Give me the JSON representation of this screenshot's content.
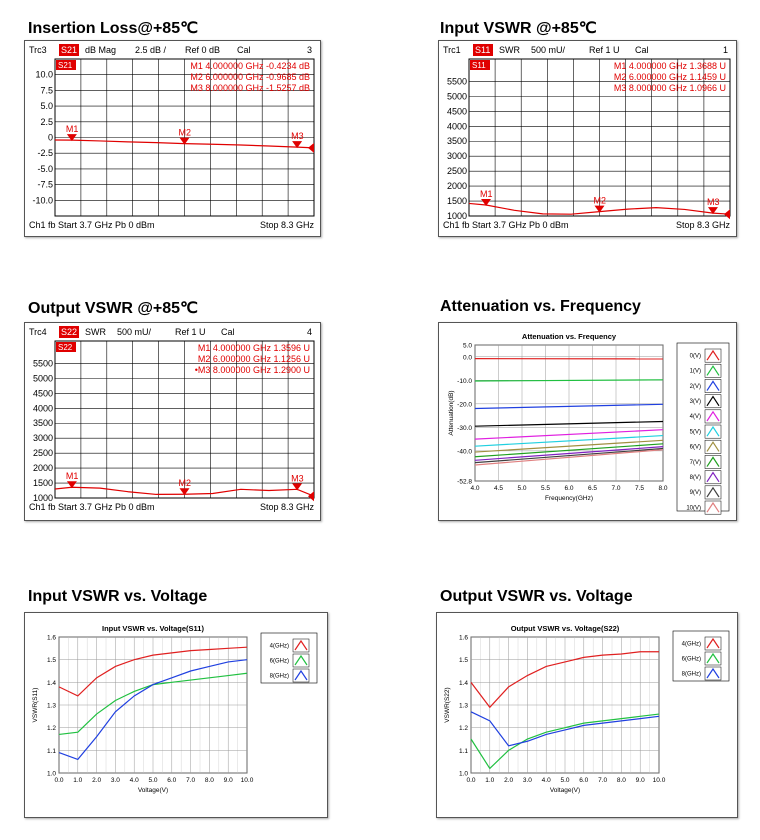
{
  "titles": {
    "t1": "Insertion Loss@+85℃",
    "t2": "Input VSWR @+85℃",
    "t3": "Output VSWR @+85℃",
    "t4": "Attenuation vs. Frequency",
    "t5": "Input VSWR vs. Voltage",
    "t6": "Output VSWR vs. Voltage"
  },
  "chart_data": [
    {
      "type": "line",
      "header": {
        "trc": "Trc3",
        "param": "S21",
        "format": "dB Mag",
        "scale": "2.5 dB /",
        "ref": "Ref 0 dB",
        "cal": "Cal",
        "num": "3"
      },
      "trace_tag": "S21",
      "ylim": [
        -12.5,
        12.5
      ],
      "yticks": [
        10,
        7.5,
        5,
        2.5,
        0,
        -2.5,
        -5,
        -7.5,
        -10
      ],
      "ytick_labels": [
        "10.0",
        "7.5",
        "5.0",
        "2.5",
        "0",
        "-2.5",
        "-5.0",
        "-7.5",
        "-10.0"
      ],
      "xlim": [
        3.7,
        8.3
      ],
      "x": [
        3.7,
        4.0,
        4.5,
        5.0,
        5.5,
        6.0,
        6.5,
        7.0,
        7.5,
        8.0,
        8.3
      ],
      "y": [
        -0.4,
        -0.42,
        -0.55,
        -0.7,
        -0.82,
        -0.97,
        -1.08,
        -1.2,
        -1.35,
        -1.53,
        -1.65
      ],
      "markers": [
        {
          "name": "M1",
          "x": 4.0,
          "y": -0.4234,
          "text": "M1   4.000000 GHz  -0.4234 dB"
        },
        {
          "name": "M2",
          "x": 6.0,
          "y": -0.9685,
          "text": "M2   6.000000 GHz  -0.9685 dB"
        },
        {
          "name": "M3",
          "x": 8.0,
          "y": -1.5257,
          "text": "M3   8.000000 GHz  -1.5257 dB"
        }
      ],
      "footer": {
        "left": "Ch1  fb  Start  3.7 GHz    Pb   0 dBm",
        "right": "Stop  8.3 GHz"
      }
    },
    {
      "type": "line",
      "header": {
        "trc": "Trc1",
        "param": "S11",
        "format": "SWR",
        "scale": "500 mU/",
        "ref": "Ref 1 U",
        "cal": "Cal",
        "num": "1"
      },
      "trace_tag": "S11",
      "ylim": [
        1000,
        6250
      ],
      "yticks": [
        5500,
        5000,
        4500,
        4000,
        3500,
        3000,
        2500,
        2000,
        1500,
        1000
      ],
      "ytick_labels": [
        "5500",
        "5000",
        "4500",
        "4000",
        "3500",
        "3000",
        "2500",
        "2000",
        "1500",
        "1000"
      ],
      "xlim": [
        3.7,
        8.3
      ],
      "x": [
        3.7,
        4.0,
        4.5,
        5.0,
        5.5,
        6.0,
        6.5,
        7.0,
        7.5,
        8.0,
        8.3
      ],
      "y": [
        1420,
        1368,
        1190,
        1070,
        1060,
        1146,
        1230,
        1280,
        1220,
        1097,
        1060
      ],
      "markers": [
        {
          "name": "M1",
          "x": 4.0,
          "y": 1368.8,
          "text": "M1   4.000000 GHz   1.3688 U"
        },
        {
          "name": "M2",
          "x": 6.0,
          "y": 1145.9,
          "text": "M2   6.000000 GHz   1.1459 U"
        },
        {
          "name": "M3",
          "x": 8.0,
          "y": 1096.6,
          "text": "M3   8.000000 GHz   1.0966 U"
        }
      ],
      "footer": {
        "left": "Ch1  fb  Start  3.7 GHz    Pb   0 dBm",
        "right": "Stop  8.3 GHz"
      }
    },
    {
      "type": "line",
      "header": {
        "trc": "Trc4",
        "param": "S22",
        "format": "SWR",
        "scale": "500 mU/",
        "ref": "Ref 1 U",
        "cal": "Cal",
        "num": "4"
      },
      "trace_tag": "S22",
      "ylim": [
        1000,
        6250
      ],
      "yticks": [
        5500,
        5000,
        4500,
        4000,
        3500,
        3000,
        2500,
        2000,
        1500,
        1000
      ],
      "ytick_labels": [
        "5500",
        "5000",
        "4500",
        "4000",
        "3500",
        "3000",
        "2500",
        "2000",
        "1500",
        "1000"
      ],
      "xlim": [
        3.7,
        8.3
      ],
      "x": [
        3.7,
        4.0,
        4.5,
        5.0,
        5.5,
        6.0,
        6.5,
        7.0,
        7.5,
        8.0,
        8.3
      ],
      "y": [
        1300,
        1360,
        1330,
        1210,
        1120,
        1126,
        1150,
        1290,
        1250,
        1290,
        1060
      ],
      "markers": [
        {
          "name": "M1",
          "x": 4.0,
          "y": 1359.6,
          "text": "M1   4.000000 GHz   1.3596 U"
        },
        {
          "name": "M2",
          "x": 6.0,
          "y": 1125.6,
          "text": "M2   6.000000 GHz   1.1256 U"
        },
        {
          "name": "M3",
          "x": 8.0,
          "y": 1290.0,
          "text": "•M3   8.000000 GHz   1.2900 U"
        }
      ],
      "footer": {
        "left": "Ch1  fb  Start  3.7 GHz    Pb   0 dBm",
        "right": "Stop  8.3 GHz"
      }
    },
    {
      "type": "line",
      "title": "Attenuation vs. Frequency",
      "xlabel": "Frequency(GHz)",
      "ylabel": "Attenuation(dB)",
      "xlim": [
        4.0,
        8.0
      ],
      "ylim": [
        -52.8,
        5.0
      ],
      "yticks": [
        5.0,
        0.0,
        -10.0,
        -20.0,
        -30.0,
        -40.0,
        -52.8
      ],
      "ytick_labels": [
        "5.0",
        "0.0",
        "-10.0",
        "-20.0",
        "-30.0",
        "-40.0",
        "-52.8"
      ],
      "xticks": [
        4.0,
        4.5,
        5.0,
        5.5,
        6.0,
        6.5,
        7.0,
        7.5,
        8.0
      ],
      "xtick_labels": [
        "4.0",
        "4.5",
        "5.0",
        "5.5",
        "6.0",
        "6.5",
        "7.0",
        "7.5",
        "8.0"
      ],
      "x": [
        4.0,
        8.0
      ],
      "series": [
        {
          "name": "0(V)",
          "color": "#e02020",
          "values": [
            -0.8,
            -0.9
          ]
        },
        {
          "name": "1(V)",
          "color": "#20c040",
          "values": [
            -10.3,
            -9.8
          ]
        },
        {
          "name": "2(V)",
          "color": "#2040e0",
          "values": [
            -22.0,
            -20.2
          ]
        },
        {
          "name": "3(V)",
          "color": "#000000",
          "values": [
            -29.5,
            -27.5
          ]
        },
        {
          "name": "4(V)",
          "color": "#e020e0",
          "values": [
            -35.0,
            -31.0
          ]
        },
        {
          "name": "5(V)",
          "color": "#20d0e0",
          "values": [
            -38.0,
            -33.5
          ]
        },
        {
          "name": "6(V)",
          "color": "#a09040",
          "values": [
            -40.5,
            -35.5
          ]
        },
        {
          "name": "7(V)",
          "color": "#20a020",
          "values": [
            -42.5,
            -37.0
          ]
        },
        {
          "name": "8(V)",
          "color": "#8020c0",
          "values": [
            -44.0,
            -38.2
          ]
        },
        {
          "name": "9(V)",
          "color": "#404040",
          "values": [
            -45.0,
            -39.0
          ]
        },
        {
          "name": "10(V)",
          "color": "#e08080",
          "values": [
            -46.0,
            -39.5
          ]
        }
      ],
      "grid": true,
      "legend": "right"
    },
    {
      "type": "line",
      "title": "Input VSWR vs. Voltage(S11)",
      "xlabel": "Voltage(V)",
      "ylabel": "VSWR(S11)",
      "xlim": [
        0.0,
        10.0
      ],
      "ylim": [
        1.0,
        1.6
      ],
      "yticks": [
        1.0,
        1.1,
        1.2,
        1.3,
        1.4,
        1.5,
        1.6
      ],
      "ytick_labels": [
        "1.0",
        "1.1",
        "1.2",
        "1.3",
        "1.4",
        "1.5",
        "1.6"
      ],
      "xticks": [
        0,
        1,
        2,
        3,
        4,
        5,
        6,
        7,
        8,
        9,
        10
      ],
      "xtick_labels": [
        "0.0",
        "1.0",
        "2.0",
        "3.0",
        "4.0",
        "5.0",
        "6.0",
        "7.0",
        "8.0",
        "9.0",
        "10.0"
      ],
      "x": [
        0,
        1,
        2,
        3,
        4,
        5,
        6,
        7,
        8,
        9,
        10
      ],
      "series": [
        {
          "name": "4(GHz)",
          "color": "#e02020",
          "values": [
            1.38,
            1.34,
            1.42,
            1.47,
            1.5,
            1.52,
            1.53,
            1.54,
            1.545,
            1.55,
            1.555
          ]
        },
        {
          "name": "6(GHz)",
          "color": "#20c040",
          "values": [
            1.17,
            1.18,
            1.26,
            1.32,
            1.36,
            1.39,
            1.4,
            1.41,
            1.42,
            1.43,
            1.44
          ]
        },
        {
          "name": "8(GHz)",
          "color": "#2040e0",
          "values": [
            1.09,
            1.06,
            1.16,
            1.27,
            1.34,
            1.39,
            1.42,
            1.45,
            1.47,
            1.49,
            1.5
          ]
        }
      ],
      "grid": true,
      "legend": "right"
    },
    {
      "type": "line",
      "title": "Output VSWR vs. Voltage(S22)",
      "xlabel": "Voltage(V)",
      "ylabel": "VSWR(S22)",
      "xlim": [
        0.0,
        10.0
      ],
      "ylim": [
        1.0,
        1.6
      ],
      "yticks": [
        1.0,
        1.1,
        1.2,
        1.3,
        1.4,
        1.5,
        1.6
      ],
      "ytick_labels": [
        "1.0",
        "1.1",
        "1.2",
        "1.3",
        "1.4",
        "1.5",
        "1.6"
      ],
      "xticks": [
        0,
        1,
        2,
        3,
        4,
        5,
        6,
        7,
        8,
        9,
        10
      ],
      "xtick_labels": [
        "0.0",
        "1.0",
        "2.0",
        "3.0",
        "4.0",
        "5.0",
        "6.0",
        "7.0",
        "8.0",
        "9.0",
        "10.0"
      ],
      "x": [
        0,
        1,
        2,
        3,
        4,
        5,
        6,
        7,
        8,
        9,
        10
      ],
      "series": [
        {
          "name": "4(GHz)",
          "color": "#e02020",
          "values": [
            1.4,
            1.29,
            1.38,
            1.43,
            1.47,
            1.49,
            1.51,
            1.52,
            1.525,
            1.535,
            1.535
          ]
        },
        {
          "name": "6(GHz)",
          "color": "#20c040",
          "values": [
            1.15,
            1.02,
            1.1,
            1.15,
            1.18,
            1.2,
            1.22,
            1.23,
            1.24,
            1.25,
            1.26
          ]
        },
        {
          "name": "8(GHz)",
          "color": "#2040e0",
          "values": [
            1.27,
            1.23,
            1.12,
            1.14,
            1.17,
            1.19,
            1.21,
            1.22,
            1.23,
            1.24,
            1.25
          ]
        }
      ],
      "grid": true,
      "legend": "right"
    }
  ]
}
